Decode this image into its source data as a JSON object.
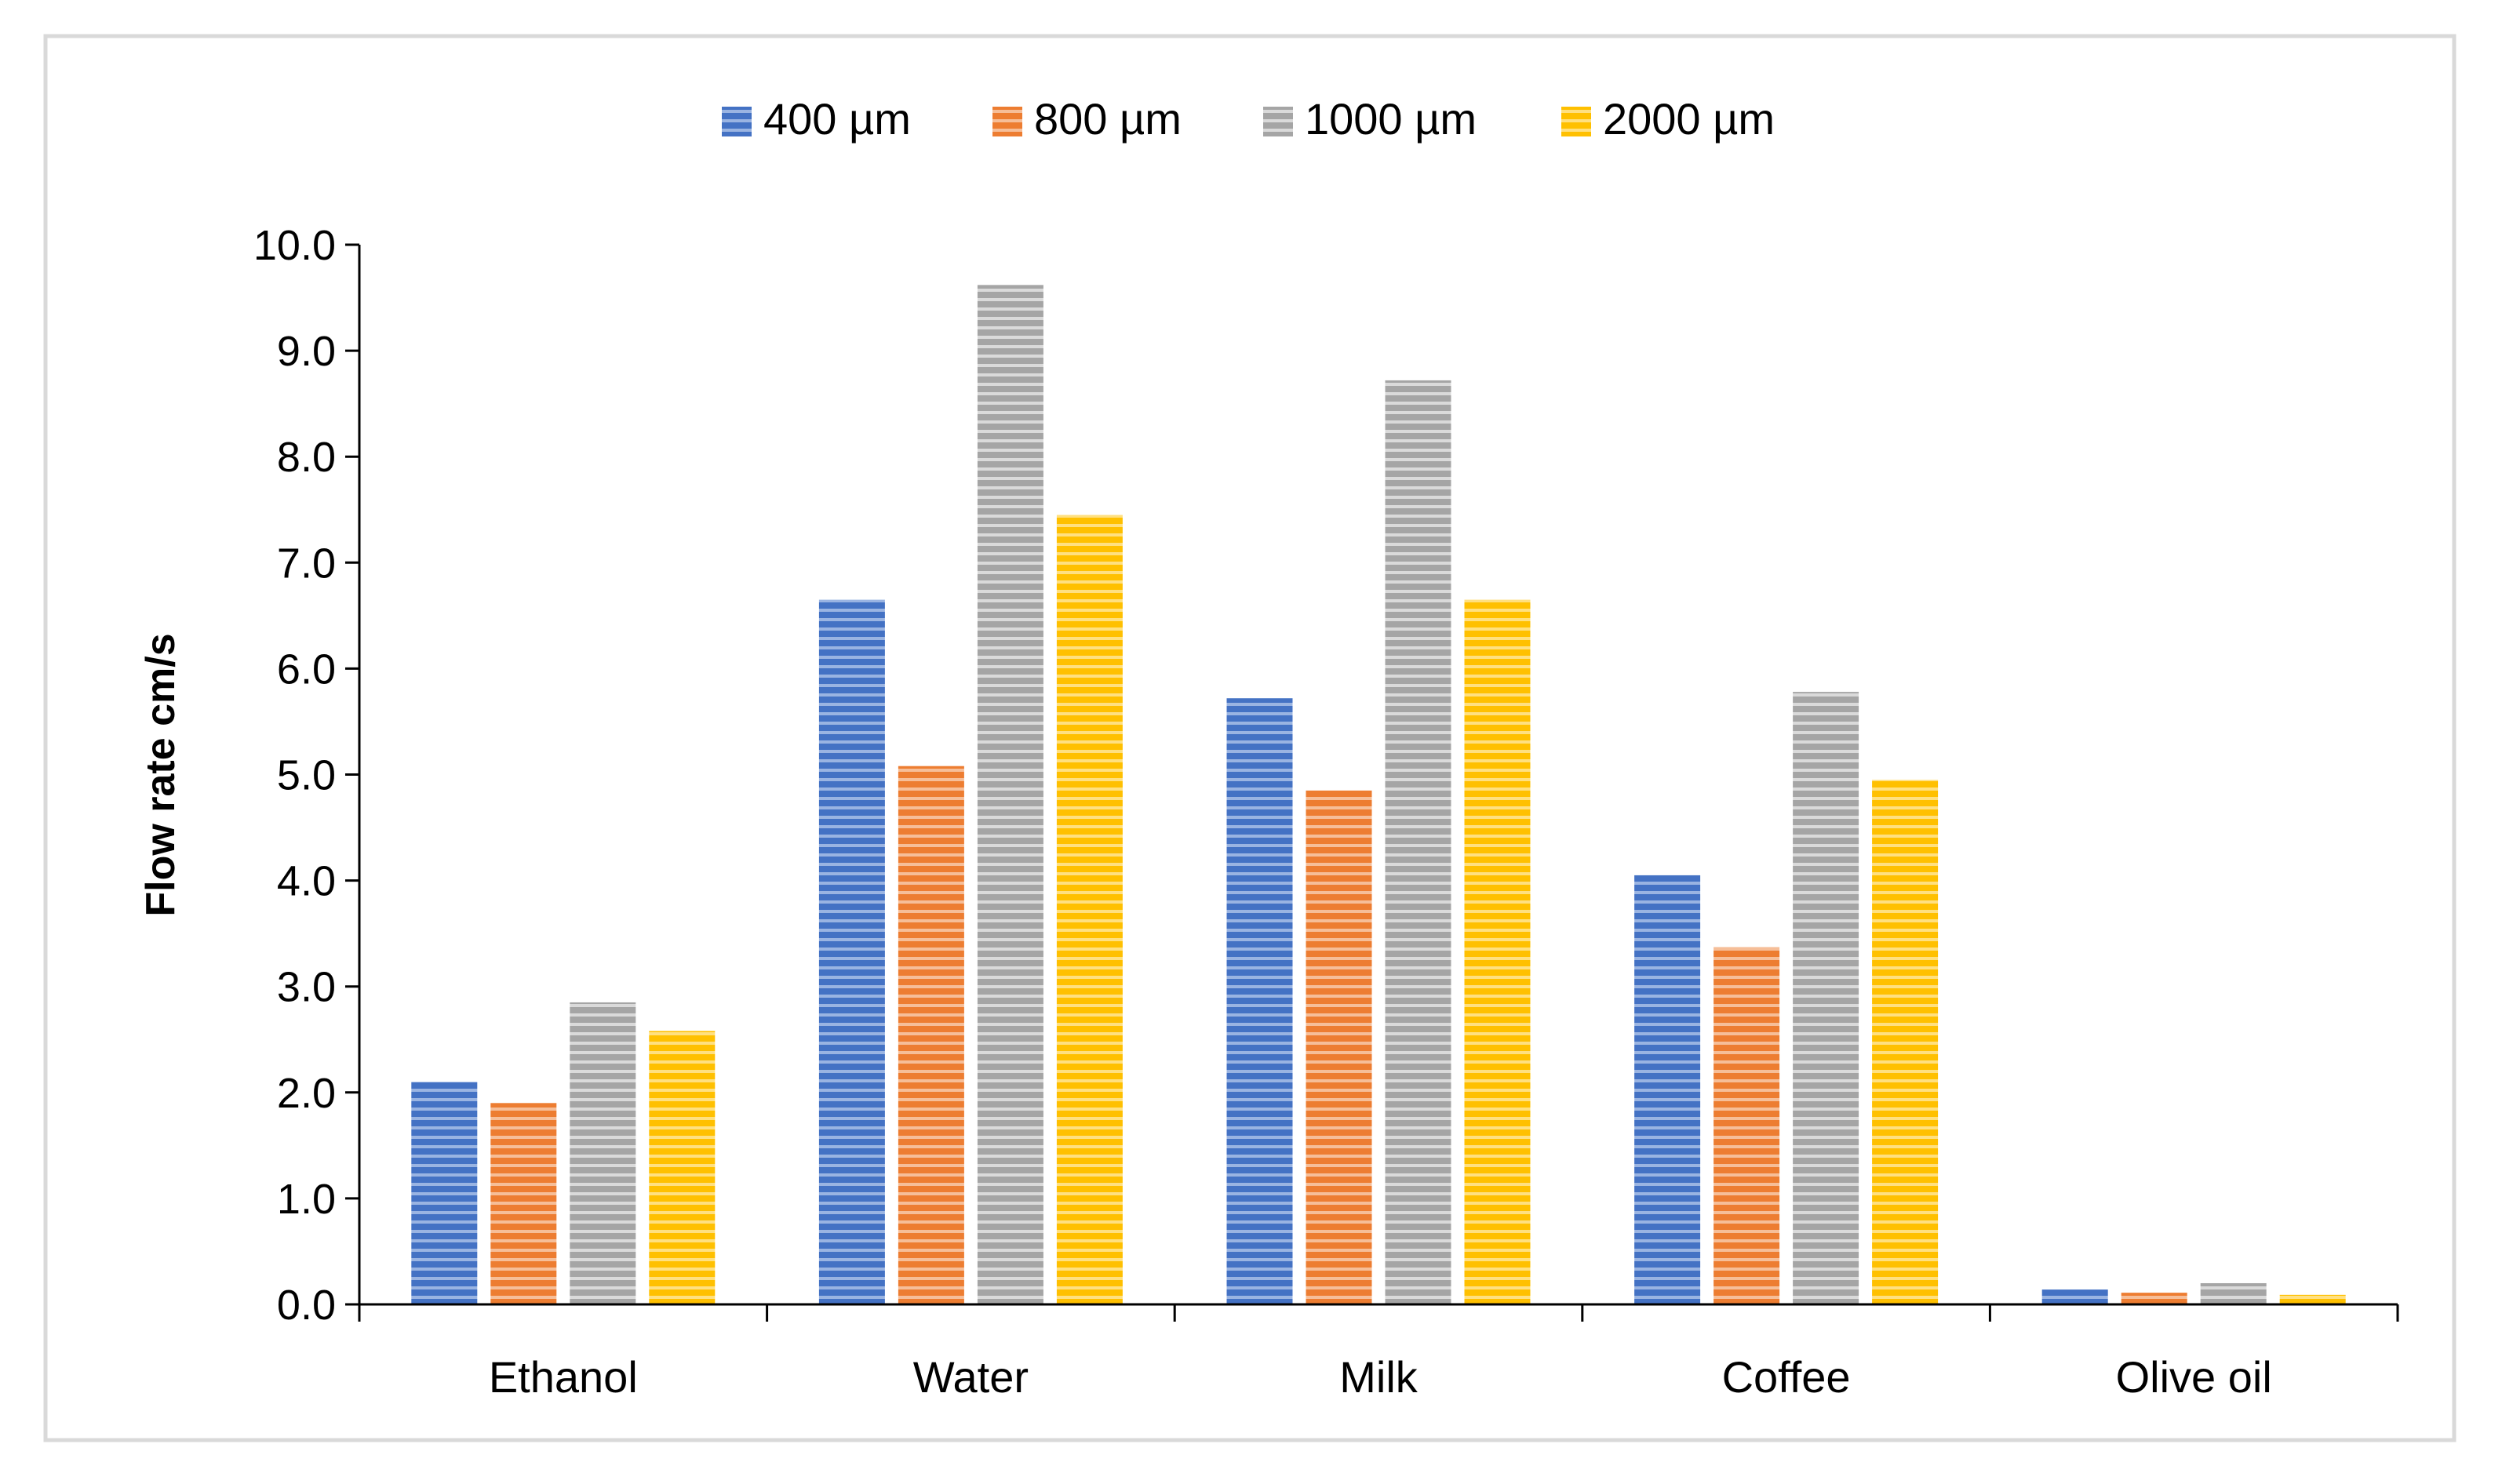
{
  "chart_data": {
    "type": "bar",
    "title": "",
    "xlabel": "",
    "ylabel": "Flow rate cm/s",
    "ylim": [
      0,
      10
    ],
    "yticks": [
      "0.0",
      "1.0",
      "2.0",
      "3.0",
      "4.0",
      "5.0",
      "6.0",
      "7.0",
      "8.0",
      "9.0",
      "10.0"
    ],
    "categories": [
      "Ethanol",
      "Water",
      "Milk",
      "Coffee",
      "Olive oil"
    ],
    "series": [
      {
        "name": "400 µm",
        "color": "#4472C4",
        "values": [
          2.1,
          6.65,
          5.72,
          4.05,
          0.14
        ]
      },
      {
        "name": "800 µm",
        "color": "#ED7D31",
        "values": [
          1.9,
          5.08,
          4.85,
          3.37,
          0.11
        ]
      },
      {
        "name": "1000 µm",
        "color": "#A5A5A5",
        "values": [
          2.85,
          9.62,
          8.72,
          5.78,
          0.2
        ]
      },
      {
        "name": "2000 µm",
        "color": "#FFC000",
        "values": [
          2.58,
          7.45,
          6.65,
          4.95,
          0.09
        ]
      }
    ],
    "legend_position": "top",
    "grid": false
  }
}
